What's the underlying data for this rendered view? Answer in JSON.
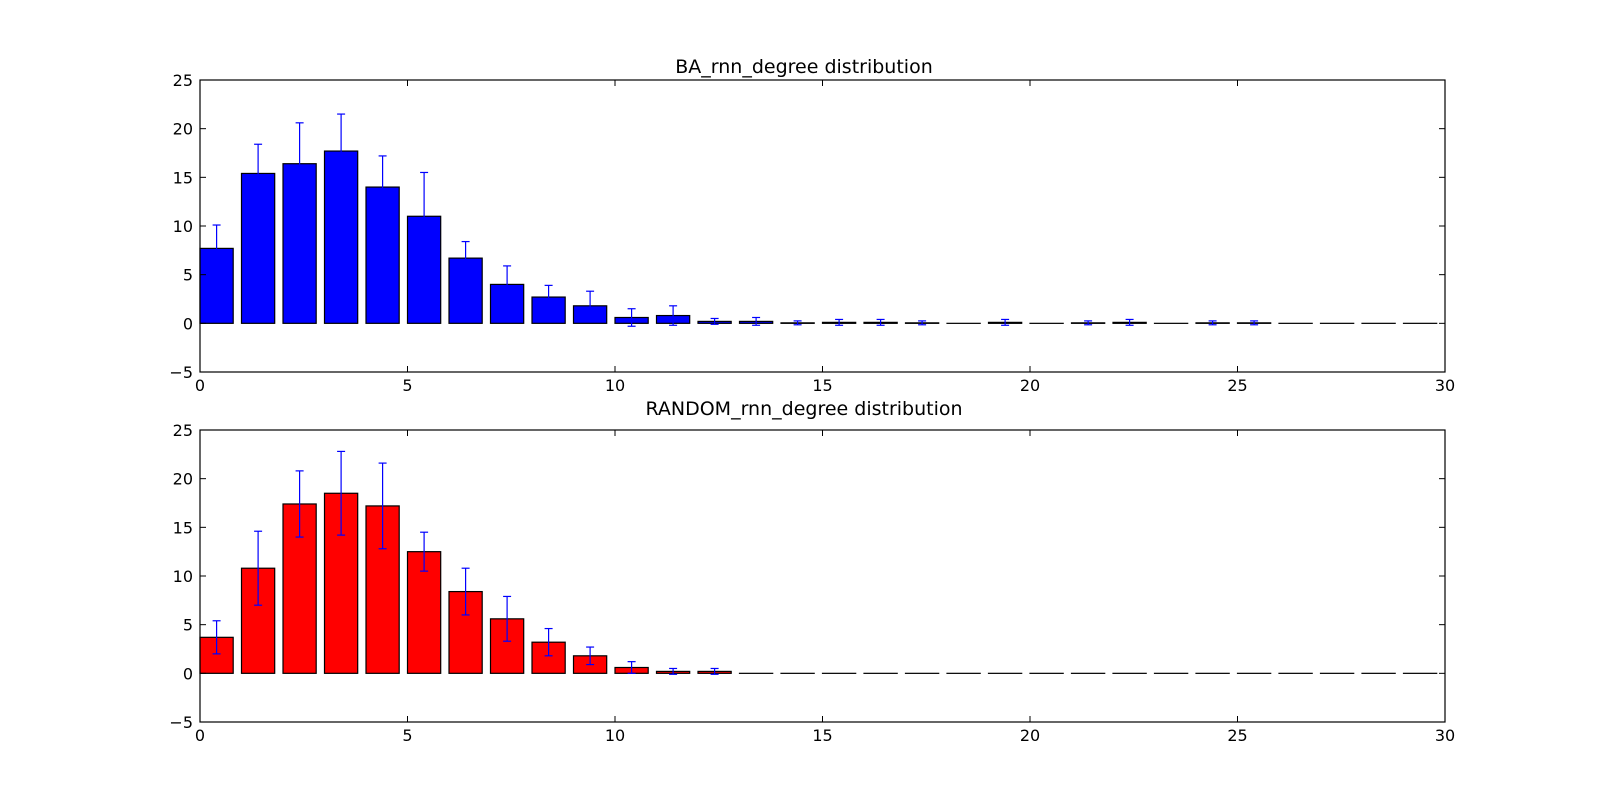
{
  "chart_data": [
    {
      "type": "bar",
      "title": "BA_rnn_degree distribution",
      "bar_color": "#0000ff",
      "error_color": "#0000ff",
      "xlim": [
        0,
        30
      ],
      "ylim": [
        -5,
        25
      ],
      "xticks": [
        0,
        5,
        10,
        15,
        20,
        25,
        30
      ],
      "yticks": [
        -5,
        0,
        5,
        10,
        15,
        20,
        25
      ],
      "bar_width": 0.8,
      "x": [
        0,
        1,
        2,
        3,
        4,
        5,
        6,
        7,
        8,
        9,
        10,
        11,
        12,
        13,
        14,
        15,
        16,
        17,
        18,
        19,
        20,
        21,
        22,
        23,
        24,
        25,
        26,
        27,
        28,
        29
      ],
      "values": [
        7.7,
        15.4,
        16.4,
        17.7,
        14.0,
        11.0,
        6.7,
        4.0,
        2.7,
        1.8,
        0.6,
        0.8,
        0.2,
        0.2,
        0.05,
        0.1,
        0.1,
        0.05,
        0.0,
        0.1,
        0.0,
        0.05,
        0.1,
        0.0,
        0.05,
        0.05,
        0.0,
        0.0,
        0.0,
        0.0
      ],
      "errors": [
        2.4,
        3.0,
        4.2,
        3.8,
        3.2,
        4.5,
        1.7,
        1.9,
        1.2,
        1.5,
        0.9,
        1.0,
        0.3,
        0.4,
        0.2,
        0.3,
        0.3,
        0.2,
        0.0,
        0.3,
        0.0,
        0.2,
        0.3,
        0.0,
        0.2,
        0.2,
        0.0,
        0.0,
        0.0,
        0.0
      ]
    },
    {
      "type": "bar",
      "title": "RANDOM_rnn_degree distribution",
      "bar_color": "#ff0000",
      "error_color": "#0000ff",
      "xlim": [
        0,
        30
      ],
      "ylim": [
        -5,
        25
      ],
      "xticks": [
        0,
        5,
        10,
        15,
        20,
        25,
        30
      ],
      "yticks": [
        -5,
        0,
        5,
        10,
        15,
        20,
        25
      ],
      "bar_width": 0.8,
      "x": [
        0,
        1,
        2,
        3,
        4,
        5,
        6,
        7,
        8,
        9,
        10,
        11,
        12,
        13,
        14,
        15,
        16,
        17,
        18,
        19,
        20,
        21,
        22,
        23,
        24,
        25,
        26,
        27,
        28,
        29
      ],
      "values": [
        3.7,
        10.8,
        17.4,
        18.5,
        17.2,
        12.5,
        8.4,
        5.6,
        3.2,
        1.8,
        0.6,
        0.2,
        0.2,
        0.0,
        0.0,
        0.0,
        0.0,
        0.0,
        0.0,
        0.0,
        0.0,
        0.0,
        0.0,
        0.0,
        0.0,
        0.0,
        0.0,
        0.0,
        0.0,
        0.0
      ],
      "errors": [
        1.7,
        3.8,
        3.4,
        4.3,
        4.4,
        2.0,
        2.4,
        2.3,
        1.4,
        0.9,
        0.6,
        0.3,
        0.3,
        0.0,
        0.0,
        0.0,
        0.0,
        0.0,
        0.0,
        0.0,
        0.0,
        0.0,
        0.0,
        0.0,
        0.0,
        0.0,
        0.0,
        0.0,
        0.0,
        0.0
      ]
    }
  ]
}
